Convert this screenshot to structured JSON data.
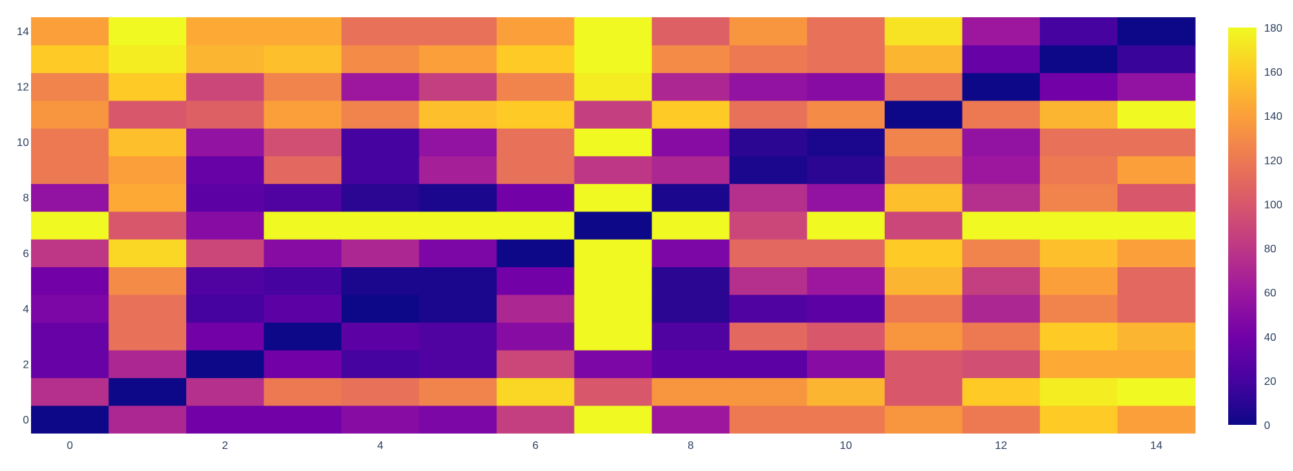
{
  "chart_data": {
    "type": "heatmap",
    "title": "",
    "xlabel": "",
    "ylabel": "",
    "x": [
      0,
      1,
      2,
      3,
      4,
      5,
      6,
      7,
      8,
      9,
      10,
      11,
      12,
      13,
      14
    ],
    "y": [
      0,
      1,
      2,
      3,
      4,
      5,
      6,
      7,
      8,
      9,
      10,
      11,
      12,
      13,
      14
    ],
    "x_ticks": [
      "0",
      "2",
      "4",
      "6",
      "8",
      "10",
      "12",
      "14"
    ],
    "y_ticks": [
      "0",
      "2",
      "4",
      "6",
      "8",
      "10",
      "12",
      "14"
    ],
    "z": [
      [
        0,
        70,
        40,
        40,
        50,
        45,
        85,
        180,
        60,
        120,
        120,
        135,
        120,
        160,
        140
      ],
      [
        75,
        0,
        75,
        120,
        115,
        125,
        165,
        100,
        135,
        135,
        150,
        100,
        160,
        175,
        180
      ],
      [
        35,
        70,
        0,
        40,
        20,
        25,
        90,
        45,
        30,
        30,
        50,
        100,
        95,
        145,
        145
      ],
      [
        35,
        115,
        40,
        0,
        30,
        25,
        50,
        180,
        25,
        110,
        100,
        135,
        120,
        160,
        150
      ],
      [
        45,
        115,
        20,
        30,
        0,
        5,
        70,
        180,
        10,
        25,
        30,
        120,
        70,
        125,
        110
      ],
      [
        40,
        130,
        25,
        20,
        5,
        5,
        40,
        180,
        10,
        75,
        60,
        150,
        85,
        140,
        110
      ],
      [
        80,
        165,
        90,
        50,
        70,
        45,
        0,
        180,
        45,
        110,
        110,
        160,
        125,
        155,
        140
      ],
      [
        180,
        100,
        50,
        180,
        180,
        180,
        180,
        0,
        180,
        90,
        180,
        90,
        180,
        180,
        180
      ],
      [
        55,
        145,
        30,
        25,
        10,
        5,
        40,
        180,
        5,
        75,
        55,
        155,
        75,
        125,
        100
      ],
      [
        120,
        140,
        35,
        110,
        20,
        65,
        115,
        80,
        70,
        5,
        10,
        110,
        60,
        120,
        140
      ],
      [
        120,
        155,
        55,
        95,
        20,
        55,
        115,
        180,
        50,
        10,
        5,
        125,
        55,
        115,
        115
      ],
      [
        135,
        100,
        105,
        140,
        125,
        155,
        160,
        85,
        160,
        115,
        130,
        0,
        120,
        150,
        180
      ],
      [
        125,
        160,
        90,
        125,
        60,
        85,
        125,
        175,
        70,
        55,
        50,
        115,
        0,
        40,
        55
      ],
      [
        160,
        175,
        150,
        155,
        130,
        140,
        160,
        180,
        130,
        120,
        115,
        150,
        35,
        0,
        15
      ],
      [
        140,
        180,
        145,
        145,
        115,
        115,
        140,
        180,
        105,
        135,
        115,
        170,
        60,
        20,
        0
      ]
    ],
    "zmin": 0,
    "zmax": 180,
    "colorscale": "Plasma",
    "colorbar_ticks": [
      "0",
      "20",
      "40",
      "60",
      "80",
      "100",
      "120",
      "140",
      "160",
      "180"
    ],
    "legend": "colorbar-right"
  }
}
